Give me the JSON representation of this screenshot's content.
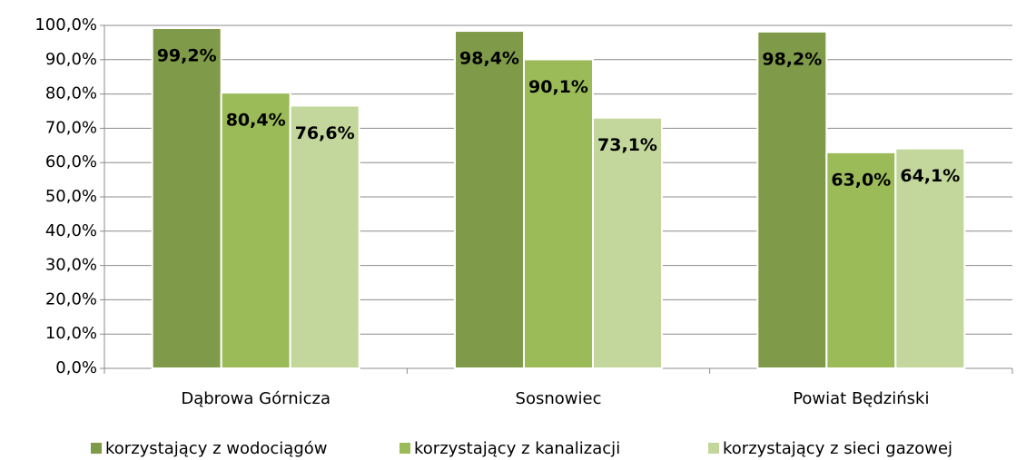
{
  "chart_data": {
    "type": "bar",
    "categories": [
      "Dąbrowa Górnicza",
      "Sosnowiec",
      "Powiat Będziński"
    ],
    "series": [
      {
        "name": "korzystający z wodociągów",
        "color": "#7f9a48",
        "values": [
          99.2,
          98.4,
          98.2
        ],
        "value_labels": [
          "99,2%",
          "98,4%",
          "98,2%"
        ]
      },
      {
        "name": "korzystający z kanalizacji",
        "color": "#9bbb59",
        "values": [
          80.4,
          90.1,
          63.0
        ],
        "value_labels": [
          "80,4%",
          "90,1%",
          "63,0%"
        ]
      },
      {
        "name": "korzystający z sieci gazowej",
        "color": "#c3d69b",
        "values": [
          76.6,
          73.1,
          64.1
        ],
        "value_labels": [
          "76,6%",
          "73,1%",
          "64,1%"
        ]
      }
    ],
    "ylim": [
      0,
      100
    ],
    "yticks": [
      {
        "value": 0,
        "label": "0,0%"
      },
      {
        "value": 10,
        "label": "10,0%"
      },
      {
        "value": 20,
        "label": "20,0%"
      },
      {
        "value": 30,
        "label": "30,0%"
      },
      {
        "value": 40,
        "label": "40,0%"
      },
      {
        "value": 50,
        "label": "50,0%"
      },
      {
        "value": 60,
        "label": "60,0%"
      },
      {
        "value": 70,
        "label": "70,0%"
      },
      {
        "value": 80,
        "label": "80,0%"
      },
      {
        "value": 90,
        "label": "90,0%"
      },
      {
        "value": 100,
        "label": "100,0%"
      }
    ],
    "grid": true,
    "legend": "bottom"
  }
}
